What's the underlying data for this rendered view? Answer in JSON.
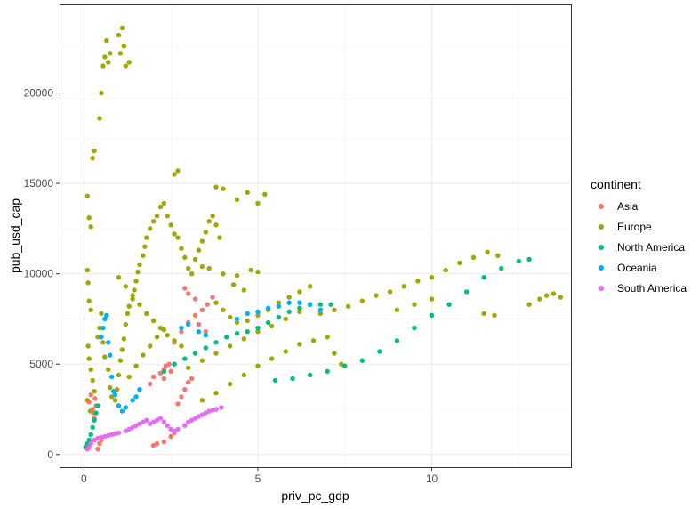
{
  "chart_data": {
    "type": "scatter",
    "title": "",
    "xlabel": "priv_pc_gdp",
    "ylabel": "pub_usd_cap",
    "xlim": [
      -0.7,
      14.0
    ],
    "ylim": [
      -700,
      24900
    ],
    "x_ticks": [
      {
        "value": 0,
        "label": "0"
      },
      {
        "value": 5,
        "label": "5"
      },
      {
        "value": 10,
        "label": "10"
      }
    ],
    "y_ticks": [
      {
        "value": 0,
        "label": "0"
      },
      {
        "value": 5000,
        "label": "5000"
      },
      {
        "value": 10000,
        "label": "10000"
      },
      {
        "value": 15000,
        "label": "15000"
      },
      {
        "value": 20000,
        "label": "20000"
      }
    ],
    "grid": true,
    "legend": {
      "title": "continent",
      "position": "right"
    },
    "colors": {
      "Asia": "#F8766D",
      "Europe": "#A3A500",
      "North America": "#00BF7D",
      "Oceania": "#00B0F6",
      "South America": "#E76BF3"
    },
    "series": [
      {
        "name": "Asia",
        "points": [
          [
            0.15,
            2900
          ],
          [
            0.2,
            3300
          ],
          [
            0.25,
            2500
          ],
          [
            0.28,
            2300
          ],
          [
            0.3,
            2000
          ],
          [
            0.32,
            3100
          ],
          [
            0.35,
            2700
          ],
          [
            0.4,
            300
          ],
          [
            0.45,
            600
          ],
          [
            0.5,
            800
          ],
          [
            2.0,
            500
          ],
          [
            2.1,
            600
          ],
          [
            2.3,
            700
          ],
          [
            2.5,
            1000
          ],
          [
            2.6,
            1200
          ],
          [
            1.9,
            3900
          ],
          [
            2.0,
            4300
          ],
          [
            2.2,
            4500
          ],
          [
            2.3,
            4700
          ],
          [
            2.35,
            4900
          ],
          [
            2.45,
            5000
          ],
          [
            2.5,
            4600
          ],
          [
            2.3,
            4200
          ],
          [
            2.7,
            2800
          ],
          [
            2.8,
            3200
          ],
          [
            2.9,
            3600
          ],
          [
            3.0,
            4000
          ],
          [
            3.1,
            4200
          ],
          [
            2.6,
            6200
          ],
          [
            2.8,
            6800
          ],
          [
            3.0,
            7300
          ],
          [
            3.2,
            7700
          ],
          [
            3.4,
            8000
          ],
          [
            3.55,
            8300
          ],
          [
            3.7,
            8700
          ],
          [
            3.2,
            8600
          ],
          [
            3.0,
            8900
          ],
          [
            2.9,
            9200
          ],
          [
            3.3,
            7200
          ],
          [
            3.5,
            6800
          ]
        ]
      },
      {
        "name": "Europe",
        "points": [
          [
            0.1,
            14300
          ],
          [
            0.15,
            13100
          ],
          [
            0.2,
            12600
          ],
          [
            0.25,
            16400
          ],
          [
            0.3,
            16800
          ],
          [
            0.1,
            10200
          ],
          [
            0.12,
            9500
          ],
          [
            0.15,
            8500
          ],
          [
            0.2,
            8000
          ],
          [
            0.12,
            6000
          ],
          [
            0.15,
            5300
          ],
          [
            0.2,
            4700
          ],
          [
            0.25,
            4100
          ],
          [
            0.3,
            3500
          ],
          [
            0.1,
            3000
          ],
          [
            0.18,
            2400
          ],
          [
            0.45,
            18600
          ],
          [
            0.5,
            20000
          ],
          [
            0.55,
            21500
          ],
          [
            0.6,
            22000
          ],
          [
            0.65,
            22900
          ],
          [
            0.7,
            21700
          ],
          [
            0.75,
            22200
          ],
          [
            1.05,
            22200
          ],
          [
            1.1,
            23600
          ],
          [
            1.15,
            22600
          ],
          [
            1.2,
            21500
          ],
          [
            1.3,
            21700
          ],
          [
            1.0,
            23200
          ],
          [
            0.4,
            6500
          ],
          [
            0.45,
            7000
          ],
          [
            0.5,
            7800
          ],
          [
            0.55,
            6200
          ],
          [
            0.6,
            5400
          ],
          [
            0.7,
            4700
          ],
          [
            0.75,
            3700
          ],
          [
            0.8,
            3200
          ],
          [
            0.9,
            3000
          ],
          [
            0.95,
            3600
          ],
          [
            1.0,
            4400
          ],
          [
            1.05,
            5200
          ],
          [
            1.1,
            5800
          ],
          [
            1.15,
            6400
          ],
          [
            1.2,
            7200
          ],
          [
            1.25,
            7800
          ],
          [
            1.3,
            8200
          ],
          [
            1.4,
            8600
          ],
          [
            1.45,
            9100
          ],
          [
            1.5,
            9600
          ],
          [
            1.55,
            10100
          ],
          [
            1.6,
            10500
          ],
          [
            1.7,
            11000
          ],
          [
            1.75,
            11500
          ],
          [
            1.8,
            12000
          ],
          [
            1.9,
            12500
          ],
          [
            2.0,
            12900
          ],
          [
            2.1,
            13200
          ],
          [
            2.2,
            13700
          ],
          [
            2.3,
            13900
          ],
          [
            2.4,
            13200
          ],
          [
            2.5,
            12700
          ],
          [
            2.6,
            12200
          ],
          [
            2.7,
            12000
          ],
          [
            2.8,
            11400
          ],
          [
            2.9,
            10900
          ],
          [
            3.0,
            10300
          ],
          [
            3.1,
            10000
          ],
          [
            3.2,
            10800
          ],
          [
            3.3,
            11300
          ],
          [
            3.4,
            11800
          ],
          [
            3.5,
            12300
          ],
          [
            3.6,
            12900
          ],
          [
            3.7,
            13200
          ],
          [
            3.8,
            12700
          ],
          [
            3.9,
            12000
          ],
          [
            1.0,
            9800
          ],
          [
            1.2,
            9300
          ],
          [
            1.4,
            8800
          ],
          [
            1.6,
            8300
          ],
          [
            1.8,
            7800
          ],
          [
            2.0,
            7400
          ],
          [
            2.2,
            7000
          ],
          [
            2.4,
            6600
          ],
          [
            2.6,
            6300
          ],
          [
            2.8,
            6000
          ],
          [
            1.3,
            4300
          ],
          [
            1.5,
            4900
          ],
          [
            1.7,
            5500
          ],
          [
            1.9,
            6000
          ],
          [
            2.1,
            6500
          ],
          [
            2.3,
            6900
          ],
          [
            2.6,
            15500
          ],
          [
            2.7,
            15700
          ],
          [
            3.8,
            14800
          ],
          [
            4.0,
            14700
          ],
          [
            4.4,
            14100
          ],
          [
            4.7,
            14500
          ],
          [
            5.0,
            13900
          ],
          [
            5.2,
            14400
          ],
          [
            3.4,
            10400
          ],
          [
            3.6,
            10300
          ],
          [
            4.0,
            10000
          ],
          [
            4.4,
            9900
          ],
          [
            4.8,
            10200
          ],
          [
            5.0,
            10100
          ],
          [
            4.3,
            9400
          ],
          [
            4.6,
            9100
          ],
          [
            3.8,
            8400
          ],
          [
            4.0,
            8000
          ],
          [
            4.2,
            7600
          ],
          [
            4.4,
            7300
          ],
          [
            4.7,
            7400
          ],
          [
            5.0,
            7700
          ],
          [
            5.3,
            8000
          ],
          [
            5.6,
            8400
          ],
          [
            5.9,
            8700
          ],
          [
            6.2,
            9000
          ],
          [
            6.5,
            9300
          ],
          [
            3.0,
            4800
          ],
          [
            3.4,
            5200
          ],
          [
            3.8,
            5600
          ],
          [
            4.2,
            6000
          ],
          [
            4.6,
            6400
          ],
          [
            5.0,
            6800
          ],
          [
            5.4,
            7100
          ],
          [
            5.8,
            7500
          ],
          [
            6.2,
            7900
          ],
          [
            3.4,
            3000
          ],
          [
            3.8,
            3400
          ],
          [
            4.2,
            3900
          ],
          [
            4.6,
            4400
          ],
          [
            5.0,
            4900
          ],
          [
            5.4,
            5300
          ],
          [
            5.8,
            5700
          ],
          [
            6.2,
            6100
          ],
          [
            6.6,
            6300
          ],
          [
            7.0,
            6500
          ],
          [
            7.2,
            5600
          ],
          [
            7.4,
            5000
          ],
          [
            6.8,
            7800
          ],
          [
            7.2,
            8000
          ],
          [
            7.6,
            8200
          ],
          [
            8.0,
            8500
          ],
          [
            8.4,
            8800
          ],
          [
            8.8,
            9000
          ],
          [
            9.2,
            9300
          ],
          [
            9.6,
            9600
          ],
          [
            10.0,
            9800
          ],
          [
            10.4,
            10200
          ],
          [
            10.8,
            10600
          ],
          [
            11.2,
            10900
          ],
          [
            11.6,
            11200
          ],
          [
            11.9,
            11000
          ],
          [
            9.0,
            8000
          ],
          [
            9.5,
            8300
          ],
          [
            10.0,
            8600
          ],
          [
            11.5,
            7800
          ],
          [
            11.8,
            7700
          ],
          [
            12.8,
            8300
          ],
          [
            13.1,
            8600
          ],
          [
            13.3,
            8800
          ],
          [
            13.5,
            8900
          ],
          [
            13.7,
            8700
          ]
        ]
      },
      {
        "name": "North America",
        "points": [
          [
            0.05,
            400
          ],
          [
            0.1,
            600
          ],
          [
            0.15,
            800
          ],
          [
            0.2,
            1100
          ],
          [
            0.25,
            1500
          ],
          [
            0.3,
            1900
          ],
          [
            0.35,
            2300
          ],
          [
            0.4,
            2700
          ],
          [
            2.3,
            4600
          ],
          [
            2.6,
            5000
          ],
          [
            2.9,
            5300
          ],
          [
            3.2,
            5600
          ],
          [
            3.5,
            5900
          ],
          [
            3.8,
            6200
          ],
          [
            4.1,
            6500
          ],
          [
            4.4,
            6700
          ],
          [
            4.7,
            6800
          ],
          [
            5.0,
            7000
          ],
          [
            5.3,
            7300
          ],
          [
            5.6,
            7600
          ],
          [
            5.9,
            7900
          ],
          [
            6.2,
            8100
          ],
          [
            6.5,
            8300
          ],
          [
            6.8,
            8300
          ],
          [
            7.1,
            8300
          ],
          [
            5.5,
            4100
          ],
          [
            6.0,
            4200
          ],
          [
            6.5,
            4400
          ],
          [
            7.0,
            4600
          ],
          [
            7.5,
            4900
          ],
          [
            8.0,
            5200
          ],
          [
            8.5,
            5700
          ],
          [
            9.0,
            6300
          ],
          [
            9.5,
            7000
          ],
          [
            10.0,
            7700
          ],
          [
            10.5,
            8300
          ],
          [
            11.0,
            9000
          ],
          [
            11.5,
            9800
          ],
          [
            12.0,
            10300
          ],
          [
            12.5,
            10700
          ],
          [
            12.8,
            10800
          ]
        ]
      },
      {
        "name": "Oceania",
        "points": [
          [
            0.5,
            6500
          ],
          [
            0.55,
            7000
          ],
          [
            0.6,
            7500
          ],
          [
            0.65,
            7700
          ],
          [
            0.7,
            6200
          ],
          [
            0.75,
            5500
          ],
          [
            0.8,
            4300
          ],
          [
            0.85,
            3500
          ],
          [
            0.9,
            3300
          ],
          [
            1.0,
            2700
          ],
          [
            1.1,
            2400
          ],
          [
            1.2,
            2600
          ],
          [
            1.4,
            3000
          ],
          [
            1.5,
            3200
          ],
          [
            1.6,
            3600
          ],
          [
            2.8,
            7000
          ],
          [
            3.0,
            7200
          ],
          [
            3.3,
            6800
          ],
          [
            3.5,
            6600
          ],
          [
            4.4,
            7500
          ],
          [
            4.7,
            7800
          ],
          [
            5.0,
            7900
          ],
          [
            5.3,
            8100
          ],
          [
            5.6,
            8200
          ],
          [
            5.9,
            8400
          ],
          [
            6.2,
            8400
          ],
          [
            6.5,
            8300
          ],
          [
            6.8,
            8000
          ]
        ]
      },
      {
        "name": "South America",
        "points": [
          [
            0.1,
            300
          ],
          [
            0.15,
            400
          ],
          [
            0.2,
            600
          ],
          [
            0.3,
            800
          ],
          [
            0.4,
            900
          ],
          [
            0.5,
            950
          ],
          [
            0.6,
            1000
          ],
          [
            0.7,
            1050
          ],
          [
            0.8,
            1100
          ],
          [
            0.9,
            1150
          ],
          [
            1.0,
            1200
          ],
          [
            1.2,
            1300
          ],
          [
            1.3,
            1400
          ],
          [
            1.4,
            1500
          ],
          [
            1.5,
            1600
          ],
          [
            1.6,
            1700
          ],
          [
            1.7,
            1800
          ],
          [
            1.8,
            1900
          ],
          [
            1.9,
            1700
          ],
          [
            2.0,
            1800
          ],
          [
            2.1,
            1900
          ],
          [
            2.2,
            2000
          ],
          [
            2.3,
            1800
          ],
          [
            2.4,
            1600
          ],
          [
            2.5,
            1400
          ],
          [
            2.6,
            1300
          ],
          [
            2.7,
            1400
          ],
          [
            2.9,
            1600
          ],
          [
            3.0,
            1800
          ],
          [
            3.1,
            1900
          ],
          [
            3.2,
            2000
          ],
          [
            3.3,
            2100
          ],
          [
            3.4,
            2200
          ],
          [
            3.5,
            2300
          ],
          [
            3.6,
            2400
          ],
          [
            3.7,
            2450
          ],
          [
            3.8,
            2500
          ],
          [
            3.95,
            2600
          ]
        ]
      }
    ]
  }
}
